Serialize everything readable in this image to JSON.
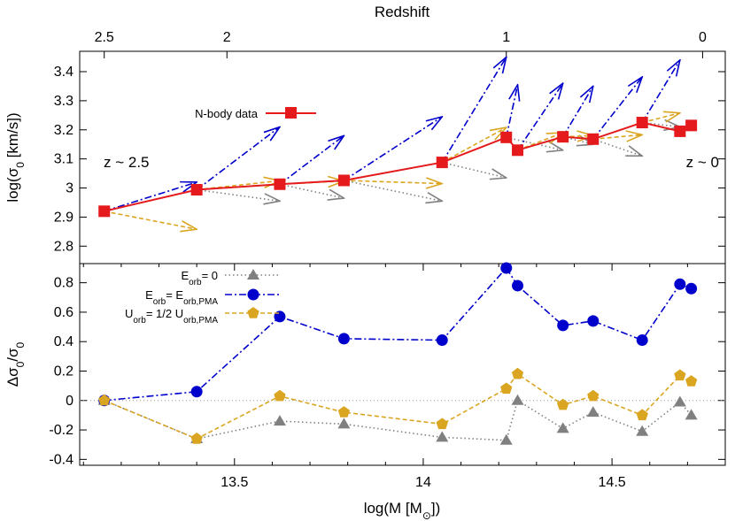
{
  "chart_data": [
    {
      "panel": "top",
      "type": "line",
      "title": "",
      "xlabel": "",
      "ylabel": "log(σ",
      "ylabel_sub": "0",
      "ylabel_suffix": " [km/s])",
      "top_axis_label": "Redshift",
      "top_axis_ticks": [
        {
          "label": "2.5",
          "mass": 13.155
        },
        {
          "label": "2",
          "mass": 13.48
        },
        {
          "label": "1",
          "mass": 14.22
        },
        {
          "label": "0",
          "mass": 14.74
        }
      ],
      "xlim": [
        13.09,
        14.8
      ],
      "ylim": [
        2.74,
        3.47
      ],
      "yticks": [
        "2.8",
        "2.9",
        "3",
        "3.1",
        "3.2",
        "3.3",
        "3.4"
      ],
      "grid": false,
      "legend_position": "top-left",
      "annotations": [
        {
          "text": "z ~ 2.5",
          "x": 13.16,
          "y": 3.09
        },
        {
          "text": "z ~ 0",
          "x": 14.75,
          "y": 3.09
        }
      ],
      "series": [
        {
          "name": "N-body data",
          "color": "#e41a1c",
          "marker": "square",
          "x": [
            13.155,
            13.4,
            13.62,
            13.79,
            14.05,
            14.22,
            14.25,
            14.37,
            14.45,
            14.58,
            14.68,
            14.71
          ],
          "y": [
            2.92,
            2.994,
            3.013,
            3.026,
            3.088,
            3.174,
            3.13,
            3.176,
            3.168,
            3.225,
            3.195,
            3.215
          ]
        }
      ],
      "arrows": [
        {
          "kind": "E_orb=0",
          "color": "#808080",
          "from": [
            13.4,
            2.994
          ],
          "to": [
            13.62,
            2.955
          ]
        },
        {
          "kind": "E_orb=0",
          "color": "#808080",
          "from": [
            13.62,
            3.013
          ],
          "to": [
            13.79,
            2.965
          ]
        },
        {
          "kind": "E_orb=0",
          "color": "#808080",
          "from": [
            13.79,
            3.026
          ],
          "to": [
            14.05,
            2.955
          ]
        },
        {
          "kind": "E_orb=0",
          "color": "#808080",
          "from": [
            14.05,
            3.088
          ],
          "to": [
            14.22,
            3.035
          ]
        },
        {
          "kind": "E_orb=0",
          "color": "#808080",
          "from": [
            14.22,
            3.174
          ],
          "to": [
            14.37,
            3.13
          ]
        },
        {
          "kind": "E_orb=0",
          "color": "#808080",
          "from": [
            14.37,
            3.176
          ],
          "to": [
            14.45,
            3.15
          ]
        },
        {
          "kind": "E_orb=0",
          "color": "#808080",
          "from": [
            14.45,
            3.168
          ],
          "to": [
            14.58,
            3.11
          ]
        },
        {
          "kind": "E_orb=0",
          "color": "#808080",
          "from": [
            14.58,
            3.225
          ],
          "to": [
            14.68,
            3.21
          ]
        },
        {
          "kind": "U_orb=1/2 U_orb,PMA",
          "color": "#daa520",
          "from": [
            13.155,
            2.92
          ],
          "to": [
            13.4,
            2.858
          ]
        },
        {
          "kind": "U_orb=1/2 U_orb,PMA",
          "color": "#daa520",
          "from": [
            13.4,
            2.994
          ],
          "to": [
            13.62,
            3.025
          ]
        },
        {
          "kind": "U_orb=1/2 U_orb,PMA",
          "color": "#daa520",
          "from": [
            13.62,
            3.013
          ],
          "to": [
            13.79,
            3.024
          ]
        },
        {
          "kind": "U_orb=1/2 U_orb,PMA",
          "color": "#daa520",
          "from": [
            13.79,
            3.026
          ],
          "to": [
            14.05,
            3.015
          ]
        },
        {
          "kind": "U_orb=1/2 U_orb,PMA",
          "color": "#daa520",
          "from": [
            14.05,
            3.088
          ],
          "to": [
            14.22,
            3.208
          ]
        },
        {
          "kind": "U_orb=1/2 U_orb,PMA",
          "color": "#daa520",
          "from": [
            14.25,
            3.13
          ],
          "to": [
            14.37,
            3.19
          ]
        },
        {
          "kind": "U_orb=1/2 U_orb,PMA",
          "color": "#daa520",
          "from": [
            14.37,
            3.176
          ],
          "to": [
            14.45,
            3.18
          ]
        },
        {
          "kind": "U_orb=1/2 U_orb,PMA",
          "color": "#daa520",
          "from": [
            14.45,
            3.168
          ],
          "to": [
            14.58,
            3.183
          ]
        },
        {
          "kind": "U_orb=1/2 U_orb,PMA",
          "color": "#daa520",
          "from": [
            14.58,
            3.225
          ],
          "to": [
            14.68,
            3.258
          ]
        },
        {
          "kind": "E_orb=E_orb,PMA",
          "color": "#0000cc",
          "from": [
            13.155,
            2.92
          ],
          "to": [
            13.4,
            3.02
          ]
        },
        {
          "kind": "E_orb=E_orb,PMA",
          "color": "#0000cc",
          "from": [
            13.4,
            2.994
          ],
          "to": [
            13.62,
            3.21
          ]
        },
        {
          "kind": "E_orb=E_orb,PMA",
          "color": "#0000cc",
          "from": [
            13.62,
            3.013
          ],
          "to": [
            13.79,
            3.18
          ]
        },
        {
          "kind": "E_orb=E_orb,PMA",
          "color": "#0000cc",
          "from": [
            13.79,
            3.026
          ],
          "to": [
            14.05,
            3.245
          ]
        },
        {
          "kind": "E_orb=E_orb,PMA",
          "color": "#0000cc",
          "from": [
            14.05,
            3.088
          ],
          "to": [
            14.22,
            3.45
          ]
        },
        {
          "kind": "E_orb=E_orb,PMA",
          "color": "#0000cc",
          "from": [
            14.22,
            3.174
          ],
          "to": [
            14.25,
            3.355
          ]
        },
        {
          "kind": "E_orb=E_orb,PMA",
          "color": "#0000cc",
          "from": [
            14.25,
            3.13
          ],
          "to": [
            14.37,
            3.36
          ]
        },
        {
          "kind": "E_orb=E_orb,PMA",
          "color": "#0000cc",
          "from": [
            14.37,
            3.176
          ],
          "to": [
            14.45,
            3.35
          ]
        },
        {
          "kind": "E_orb=E_orb,PMA",
          "color": "#0000cc",
          "from": [
            14.45,
            3.168
          ],
          "to": [
            14.58,
            3.382
          ]
        },
        {
          "kind": "E_orb=E_orb,PMA",
          "color": "#0000cc",
          "from": [
            14.58,
            3.225
          ],
          "to": [
            14.68,
            3.44
          ]
        }
      ]
    },
    {
      "panel": "bottom",
      "type": "line",
      "title": "",
      "xlabel": "log(M [M",
      "xlabel_sub": "⊙",
      "xlabel_suffix": "])",
      "ylabel": "Δσ",
      "ylabel_sub1": "0",
      "ylabel_mid": "/σ",
      "ylabel_sub2": "0",
      "xlim": [
        13.09,
        14.8
      ],
      "ylim": [
        -0.44,
        0.93
      ],
      "xticks": [
        "13.5",
        "14",
        "14.5"
      ],
      "xtick_values": [
        13.5,
        14.0,
        14.5
      ],
      "yticks": [
        "-0.4",
        "-0.2",
        "0",
        "0.2",
        "0.4",
        "0.6",
        "0.8"
      ],
      "ytick_values": [
        -0.4,
        -0.2,
        0,
        0.2,
        0.4,
        0.6,
        0.8
      ],
      "grid": false,
      "zero_line": true,
      "legend_position": "top-left",
      "series": [
        {
          "name_main": "E",
          "name_sub": "orb",
          "name_rest": "= 0",
          "color": "#808080",
          "marker": "triangle",
          "dash": "dotted",
          "x": [
            13.155,
            13.4,
            13.62,
            13.79,
            14.05,
            14.22,
            14.25,
            14.37,
            14.45,
            14.58,
            14.68,
            14.71
          ],
          "y": [
            0.0,
            -0.26,
            -0.14,
            -0.16,
            -0.25,
            -0.27,
            0.0,
            -0.19,
            -0.08,
            -0.21,
            -0.01,
            -0.1
          ]
        },
        {
          "name_main": "E",
          "name_sub": "orb",
          "name_rest": "= E",
          "name_sub2": "orb,PMA",
          "color": "#0000cc",
          "marker": "circle",
          "dash": "dashdot",
          "x": [
            13.155,
            13.4,
            13.62,
            13.79,
            14.05,
            14.22,
            14.25,
            14.37,
            14.45,
            14.58,
            14.68,
            14.71
          ],
          "y": [
            0.0,
            0.06,
            0.57,
            0.42,
            0.41,
            0.9,
            0.78,
            0.51,
            0.54,
            0.41,
            0.79,
            0.76
          ]
        },
        {
          "name_main": "U",
          "name_sub": "orb",
          "name_rest": "= 1/2 U",
          "name_sub2": "orb,PMA",
          "color": "#daa520",
          "marker": "pentagon",
          "dash": "dashed",
          "x": [
            13.155,
            13.4,
            13.62,
            13.79,
            14.05,
            14.22,
            14.25,
            14.37,
            14.45,
            14.58,
            14.68,
            14.71
          ],
          "y": [
            0.0,
            -0.26,
            0.03,
            -0.08,
            -0.16,
            0.08,
            0.18,
            -0.03,
            0.03,
            -0.1,
            0.17,
            0.13
          ]
        }
      ]
    }
  ]
}
